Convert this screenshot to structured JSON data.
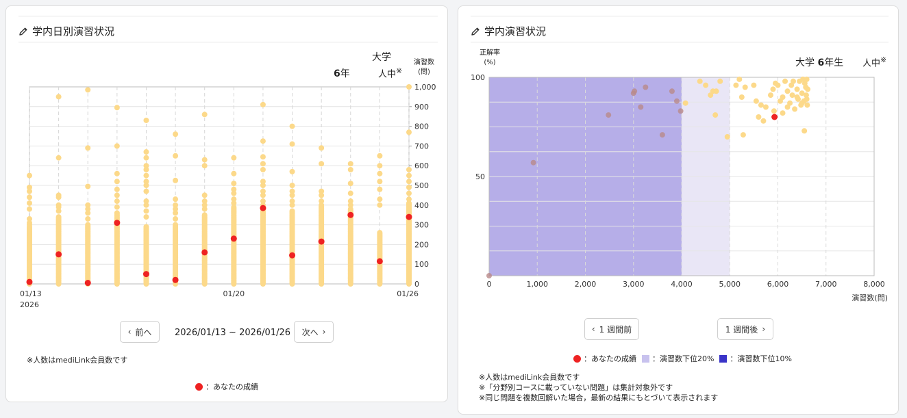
{
  "left_panel": {
    "title": "学内日別演習状況",
    "header_school": "大学",
    "header_grade_num": "6",
    "header_grade_suffix": "年",
    "header_people": "人中",
    "header_mark": "※",
    "y_axis_title_line1": "演習数",
    "y_axis_title_line2": "(問)",
    "prev_button": "前へ",
    "date_range": "2026/01/13 ~ 2026/01/26",
    "next_button": "次へ",
    "note": "※人数はmediLink会員数です",
    "legend_you": "：あなたの成績",
    "colors": {
      "others": "#fcd98a",
      "you": "#ee2222"
    }
  },
  "right_panel": {
    "title": "学内演習状況",
    "y_axis_title_line1": "正解率",
    "y_axis_title_line2": "(%)",
    "header_school": "大学",
    "header_grade_num": "6",
    "header_grade_suffix": "年生",
    "header_people": "人中",
    "header_mark": "※",
    "x_axis_title": "演習数(問)",
    "prev_button": "1 週間前",
    "next_button": "1 週間後",
    "legend_you": "：あなたの成績",
    "legend_bottom20": "：演習数下位20%",
    "legend_bottom10": "：演習数下位10%",
    "notes": [
      "※人数はmediLink会員数です",
      "※「分野別コースに載っていない問題」は集計対象外です",
      "※同じ問題を複数回解いた場合，最新の結果にもとづいて表示されます"
    ],
    "colors": {
      "others": "#fcd98a",
      "you": "#ee2222",
      "bottom20": "#e9e6f6",
      "bottom10": "#b6aee8"
    }
  },
  "chart_data": [
    {
      "type": "scatter",
      "title": "学内日別演習状況",
      "ylabel": "演習数(問)",
      "ylim": [
        0,
        1000
      ],
      "y_ticks": [
        0,
        100,
        200,
        300,
        400,
        500,
        600,
        700,
        800,
        900,
        "1,000"
      ],
      "x_tick_labels": [
        {
          "day": 0,
          "label": "01/13",
          "sublabel": "2026"
        },
        {
          "day": 7,
          "label": "01/20"
        },
        {
          "day": 13,
          "label": "01/26"
        }
      ],
      "grid": true,
      "days": [
        {
          "day": 0,
          "date": "01/13",
          "outliers": [
            550,
            490,
            470,
            440,
            410,
            380,
            330,
            310,
            300
          ],
          "dense_range": [
            0,
            290
          ],
          "you": 10
        },
        {
          "day": 1,
          "date": "01/14",
          "outliers": [
            950,
            640,
            450,
            440,
            400,
            390,
            370
          ],
          "dense_range": [
            0,
            340
          ],
          "you": 150
        },
        {
          "day": 2,
          "date": "01/15",
          "outliers": [
            985,
            690,
            495,
            400,
            380,
            360,
            330
          ],
          "dense_range": [
            0,
            300
          ],
          "you": 5
        },
        {
          "day": 3,
          "date": "01/16",
          "outliers": [
            895,
            700,
            560,
            520,
            480,
            450,
            420,
            390
          ],
          "dense_range": [
            0,
            360
          ],
          "you": 310
        },
        {
          "day": 4,
          "date": "01/17",
          "outliers": [
            830,
            670,
            640,
            600,
            580,
            550,
            520,
            500,
            470,
            420,
            400,
            370,
            340
          ],
          "dense_range": [
            0,
            290
          ],
          "you": 50
        },
        {
          "day": 5,
          "date": "01/18",
          "outliers": [
            760,
            650,
            525,
            430,
            400,
            380,
            360,
            330
          ],
          "dense_range": [
            0,
            300
          ],
          "you": 20
        },
        {
          "day": 6,
          "date": "01/19",
          "outliers": [
            860,
            630,
            600,
            450,
            420,
            400,
            380
          ],
          "dense_range": [
            0,
            350
          ],
          "you": 160
        },
        {
          "day": 7,
          "date": "01/20",
          "outliers": [
            640,
            560,
            510,
            480,
            460,
            430,
            410
          ],
          "dense_range": [
            0,
            390
          ],
          "you": 230
        },
        {
          "day": 8,
          "date": "01/21",
          "outliers": [
            910,
            725,
            645,
            610,
            580,
            520,
            500,
            470,
            450,
            420
          ],
          "dense_range": [
            0,
            400
          ],
          "you": 385
        },
        {
          "day": 9,
          "date": "01/22",
          "outliers": [
            800,
            710,
            570,
            500,
            470,
            450,
            420,
            400
          ],
          "dense_range": [
            0,
            370
          ],
          "you": 145
        },
        {
          "day": 10,
          "date": "01/23",
          "outliers": [
            690,
            610,
            470,
            450,
            420
          ],
          "dense_range": [
            0,
            400
          ],
          "you": 215
        },
        {
          "day": 11,
          "date": "01/24",
          "outliers": [
            610,
            580,
            510,
            460,
            420,
            400
          ],
          "dense_range": [
            0,
            380
          ],
          "you": 350
        },
        {
          "day": 12,
          "date": "01/25",
          "outliers": [
            650,
            600,
            560,
            520,
            480,
            430,
            400
          ],
          "dense_range": [
            0,
            260
          ],
          "you": 115
        },
        {
          "day": 13,
          "date": "01/26",
          "outliers": [
            1000,
            770,
            580,
            550,
            520,
            490,
            460,
            430
          ],
          "dense_range": [
            0,
            410
          ],
          "you": 340
        }
      ]
    },
    {
      "type": "scatter",
      "title": "学内演習状況",
      "xlabel": "演習数(問)",
      "ylabel": "正解率(%)",
      "xlim": [
        0,
        8000
      ],
      "ylim": [
        0,
        100
      ],
      "x_ticks": [
        "0",
        "1,000",
        "2,000",
        "3,000",
        "4,000",
        "5,000",
        "6,000",
        "7,000",
        "8,000"
      ],
      "y_ticks": [
        {
          "value": 50,
          "label": "50"
        },
        {
          "value": 100,
          "label": "100"
        }
      ],
      "grid": true,
      "shaded_bands": [
        {
          "name": "演習数下位10%",
          "x": [
            0,
            4000
          ]
        },
        {
          "name": "演習数下位20%",
          "x": [
            4000,
            5000
          ]
        }
      ],
      "others": [
        [
          0,
          0
        ],
        [
          920,
          57
        ],
        [
          2480,
          81
        ],
        [
          3000,
          92
        ],
        [
          3020,
          93
        ],
        [
          3150,
          85
        ],
        [
          3250,
          95
        ],
        [
          3600,
          71
        ],
        [
          3800,
          93
        ],
        [
          3900,
          88
        ],
        [
          3980,
          83
        ],
        [
          4080,
          87
        ],
        [
          4380,
          98
        ],
        [
          4500,
          96
        ],
        [
          4600,
          91
        ],
        [
          4650,
          93
        ],
        [
          4700,
          81
        ],
        [
          4720,
          93
        ],
        [
          4800,
          98
        ],
        [
          4950,
          70
        ],
        [
          5130,
          96
        ],
        [
          5200,
          99
        ],
        [
          5250,
          90
        ],
        [
          5280,
          71
        ],
        [
          5320,
          95
        ],
        [
          5500,
          96
        ],
        [
          5550,
          88
        ],
        [
          5600,
          80
        ],
        [
          5650,
          86
        ],
        [
          5700,
          78
        ],
        [
          5750,
          85
        ],
        [
          5850,
          91
        ],
        [
          5900,
          94
        ],
        [
          5920,
          83
        ],
        [
          5950,
          97
        ],
        [
          6000,
          96
        ],
        [
          6050,
          88
        ],
        [
          6100,
          82
        ],
        [
          6150,
          98
        ],
        [
          6200,
          93
        ],
        [
          6250,
          87
        ],
        [
          6280,
          96
        ],
        [
          6300,
          91
        ],
        [
          6320,
          98
        ],
        [
          6350,
          84
        ],
        [
          6400,
          94
        ],
        [
          6420,
          89
        ],
        [
          6450,
          98
        ],
        [
          6480,
          86
        ],
        [
          6500,
          92
        ],
        [
          6520,
          99
        ],
        [
          6540,
          88
        ],
        [
          6560,
          97
        ],
        [
          6580,
          95
        ],
        [
          6590,
          91
        ],
        [
          6600,
          89
        ],
        [
          6600,
          99
        ],
        [
          6610,
          86
        ],
        [
          6620,
          94
        ],
        [
          6500,
          87
        ],
        [
          6400,
          90
        ],
        [
          6200,
          85
        ],
        [
          6100,
          90
        ],
        [
          6550,
          73
        ]
      ],
      "you": [
        5930,
        80
      ]
    }
  ]
}
